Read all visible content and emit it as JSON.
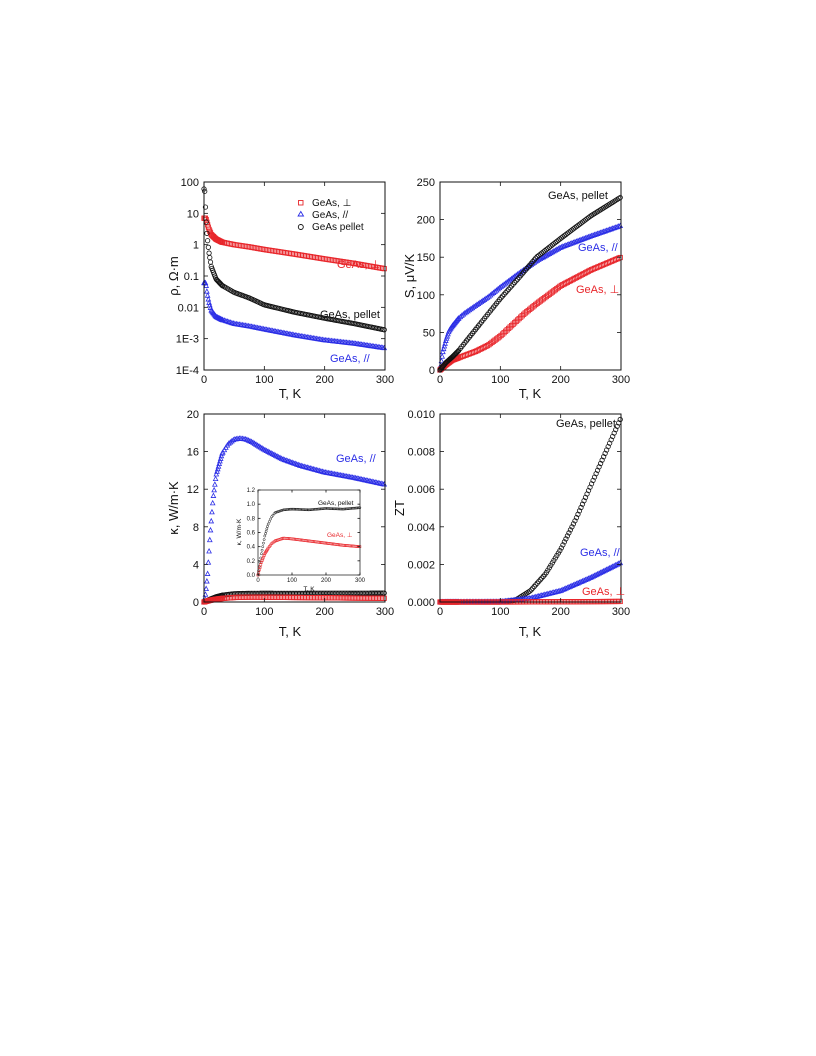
{
  "colors": {
    "red": "#e8262b",
    "blue": "#2b2ee6",
    "black": "#111111"
  },
  "chart_data": [
    {
      "type": "scatter",
      "panel": "resistivity",
      "xlabel": "T, K",
      "ylabel": "ρ, Ω·m",
      "xlim": [
        0,
        300
      ],
      "ylim": [
        0.0001,
        100
      ],
      "yscale": "log",
      "xticks": [
        "0",
        "100",
        "200",
        "300"
      ],
      "yticks": [
        "1E-4",
        "1E-3",
        "0.01",
        "0.1",
        "1",
        "10",
        "100"
      ],
      "legend": {
        "position": "top-right",
        "entries": [
          "GeAs, ⊥",
          "GeAs, //",
          "GeAs pellet"
        ]
      },
      "annotations": [
        "GeAs, ⊥",
        "GeAs, pellet",
        "GeAs, //"
      ],
      "series": [
        {
          "name": "GeAs, ⊥",
          "marker": "square",
          "color": "red",
          "x": [
            3,
            5,
            8,
            12,
            20,
            30,
            50,
            75,
            100,
            150,
            200,
            250,
            300
          ],
          "y": [
            7,
            5,
            3.2,
            2.1,
            1.5,
            1.2,
            1.0,
            0.85,
            0.7,
            0.5,
            0.35,
            0.25,
            0.17
          ]
        },
        {
          "name": "GeAs, //",
          "marker": "triangle",
          "color": "blue",
          "x": [
            3,
            5,
            8,
            12,
            20,
            30,
            50,
            75,
            100,
            150,
            200,
            250,
            300
          ],
          "y": [
            0.06,
            0.03,
            0.015,
            0.008,
            0.005,
            0.004,
            0.003,
            0.0025,
            0.002,
            0.0013,
            0.0009,
            0.0007,
            0.0005
          ]
        },
        {
          "name": "GeAs pellet",
          "marker": "circle",
          "color": "black",
          "x": [
            1,
            2,
            3,
            5,
            8,
            12,
            20,
            30,
            50,
            75,
            100,
            150,
            200,
            250,
            300
          ],
          "y": [
            60,
            25,
            8,
            2,
            0.6,
            0.2,
            0.08,
            0.05,
            0.03,
            0.02,
            0.012,
            0.007,
            0.0045,
            0.003,
            0.0019
          ]
        }
      ]
    },
    {
      "type": "scatter",
      "panel": "seebeck",
      "xlabel": "T, K",
      "ylabel": "S, μV/K",
      "xlim": [
        0,
        300
      ],
      "ylim": [
        0,
        250
      ],
      "xticks": [
        "0",
        "100",
        "200",
        "300"
      ],
      "yticks": [
        "0",
        "50",
        "100",
        "150",
        "200",
        "250"
      ],
      "annotations": [
        "GeAs, pellet",
        "GeAs, //",
        "GeAs, ⊥"
      ],
      "series": [
        {
          "name": "GeAs, //",
          "marker": "triangle",
          "color": "blue",
          "x": [
            0,
            5,
            10,
            15,
            20,
            30,
            40,
            60,
            80,
            100,
            130,
            160,
            200,
            250,
            300
          ],
          "y": [
            0,
            25,
            40,
            52,
            58,
            68,
            75,
            86,
            97,
            110,
            128,
            145,
            163,
            178,
            192
          ]
        },
        {
          "name": "GeAs, ⊥",
          "marker": "square",
          "color": "red",
          "x": [
            0,
            10,
            20,
            40,
            60,
            80,
            100,
            120,
            140,
            160,
            200,
            250,
            300
          ],
          "y": [
            0,
            7,
            13,
            19,
            25,
            33,
            45,
            60,
            75,
            88,
            112,
            133,
            150
          ]
        },
        {
          "name": "GeAs pellet",
          "marker": "circle",
          "color": "black",
          "x": [
            0,
            10,
            20,
            30,
            50,
            75,
            100,
            130,
            160,
            200,
            250,
            300
          ],
          "y": [
            0,
            10,
            17,
            25,
            45,
            70,
            95,
            122,
            150,
            175,
            205,
            230
          ]
        }
      ]
    },
    {
      "type": "scatter",
      "panel": "thermal-conductivity",
      "xlabel": "T, K",
      "ylabel": "κ, W/m·K",
      "xlim": [
        0,
        300
      ],
      "ylim": [
        0,
        20
      ],
      "xticks": [
        "0",
        "100",
        "200",
        "300"
      ],
      "yticks": [
        "0",
        "4",
        "8",
        "12",
        "16",
        "20"
      ],
      "annotations": [
        "GeAs, //"
      ],
      "series": [
        {
          "name": "GeAs, //",
          "marker": "triangle",
          "color": "blue",
          "x": [
            0,
            3,
            6,
            10,
            15,
            20,
            30,
            40,
            50,
            60,
            70,
            80,
            100,
            130,
            160,
            200,
            250,
            300
          ],
          "y": [
            0,
            1,
            3,
            7,
            11,
            13.5,
            15.8,
            16.8,
            17.3,
            17.4,
            17.3,
            17.0,
            16.2,
            15.2,
            14.5,
            13.8,
            13.2,
            12.5
          ]
        },
        {
          "name": "GeAs pellet",
          "marker": "circle",
          "color": "black",
          "x": [
            0,
            10,
            20,
            30,
            50,
            75,
            100,
            150,
            200,
            250,
            300
          ],
          "y": [
            0,
            0.3,
            0.55,
            0.72,
            0.88,
            0.92,
            0.93,
            0.92,
            0.94,
            0.93,
            0.95
          ]
        },
        {
          "name": "GeAs, ⊥",
          "marker": "square",
          "color": "red",
          "x": [
            0,
            10,
            20,
            30,
            50,
            75,
            100,
            150,
            200,
            250,
            300
          ],
          "y": [
            0,
            0.18,
            0.3,
            0.38,
            0.48,
            0.52,
            0.51,
            0.48,
            0.45,
            0.42,
            0.4
          ]
        }
      ],
      "inset": {
        "xlabel": "T, K",
        "ylabel": "κ, W/m·K",
        "xlim": [
          0,
          300
        ],
        "ylim": [
          0,
          1.2
        ],
        "xticks": [
          "0",
          "100",
          "200",
          "300"
        ],
        "yticks": [
          "0.0",
          "0.2",
          "0.4",
          "0.6",
          "0.8",
          "1.0",
          "1.2"
        ],
        "annotations": [
          "GeAs, pellet",
          "GeAs, ⊥"
        ],
        "series": [
          {
            "name": "GeAs pellet",
            "marker": "circle",
            "color": "black",
            "x": [
              0,
              10,
              20,
              30,
              40,
              50,
              75,
              100,
              150,
              200,
              250,
              300
            ],
            "y": [
              0,
              0.3,
              0.55,
              0.72,
              0.82,
              0.88,
              0.92,
              0.93,
              0.92,
              0.94,
              0.93,
              0.95
            ]
          },
          {
            "name": "GeAs, ⊥",
            "marker": "square",
            "color": "red",
            "x": [
              0,
              10,
              20,
              30,
              40,
              50,
              75,
              100,
              150,
              200,
              250,
              300
            ],
            "y": [
              0,
              0.18,
              0.3,
              0.38,
              0.44,
              0.48,
              0.52,
              0.51,
              0.48,
              0.45,
              0.42,
              0.4
            ]
          }
        ]
      }
    },
    {
      "type": "scatter",
      "panel": "figure-of-merit",
      "xlabel": "T, K",
      "ylabel": "ZT",
      "xlim": [
        0,
        300
      ],
      "ylim": [
        0,
        0.01
      ],
      "xticks": [
        "0",
        "100",
        "200",
        "300"
      ],
      "yticks": [
        "0.000",
        "0.002",
        "0.004",
        "0.006",
        "0.008",
        "0.010"
      ],
      "annotations": [
        "GeAs, pellet",
        "GeAs, //",
        "GeAs, ⊥"
      ],
      "series": [
        {
          "name": "GeAs pellet",
          "marker": "circle",
          "color": "black",
          "x": [
            0,
            50,
            100,
            125,
            150,
            175,
            200,
            225,
            250,
            275,
            300
          ],
          "y": [
            0,
            0,
            0,
            0.0001,
            0.0006,
            0.0015,
            0.0028,
            0.0044,
            0.0062,
            0.008,
            0.0098
          ]
        },
        {
          "name": "GeAs, //",
          "marker": "triangle",
          "color": "blue",
          "x": [
            0,
            100,
            150,
            200,
            250,
            300
          ],
          "y": [
            0,
            2e-05,
            0.0002,
            0.0006,
            0.0013,
            0.0021
          ]
        },
        {
          "name": "GeAs, ⊥",
          "marker": "square",
          "color": "red",
          "x": [
            0,
            100,
            200,
            300
          ],
          "y": [
            0,
            0,
            1e-05,
            3e-05
          ]
        }
      ]
    }
  ]
}
